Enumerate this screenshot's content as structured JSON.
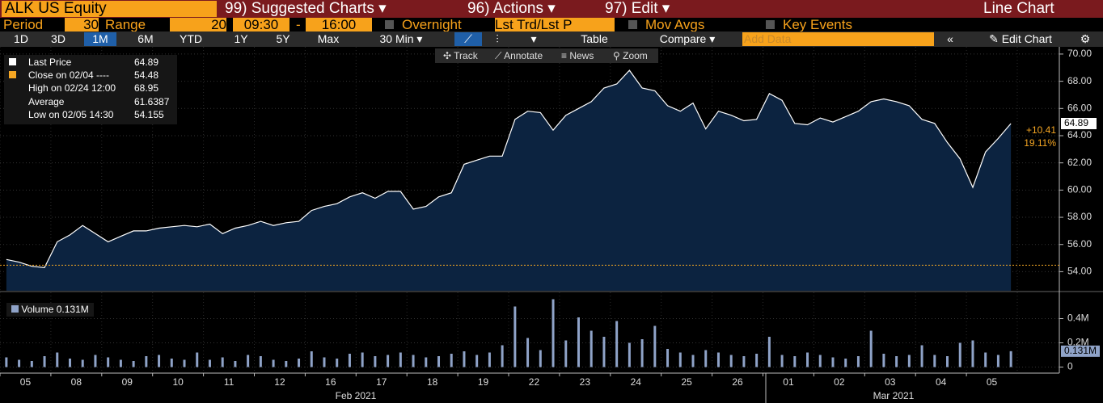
{
  "header": {
    "security": "ALK US Equity",
    "menus": [
      "99) Suggested Charts",
      "96) Actions",
      "97) Edit"
    ],
    "view": "Line Chart"
  },
  "settings": {
    "period_label": "Period",
    "period": "30",
    "range_label": "Range",
    "range": "20",
    "start": "09:30",
    "dash": "-",
    "end": "16:00",
    "overnight": "Overnight",
    "field": "Lst Trd/Lst P",
    "mov_avgs": "Mov Avgs",
    "key_events": "Key Events"
  },
  "toolbar": {
    "periods": [
      "1D",
      "3D",
      "1M",
      "6M",
      "YTD",
      "1Y",
      "5Y",
      "Max"
    ],
    "selected_period": "1M",
    "interval": "30 Min",
    "table": "Table",
    "compare": "Compare",
    "add_data": "Add Data",
    "edit_chart": "Edit Chart"
  },
  "chart_tools": [
    "Track",
    "Annotate",
    "News",
    "Zoom"
  ],
  "months": [
    "Feb 2021",
    "Mar 2021"
  ],
  "chart_data": [
    {
      "type": "area",
      "categories": [
        null,
        "05",
        null,
        null,
        null,
        "08",
        null,
        null,
        null,
        "09",
        null,
        null,
        null,
        "10",
        null,
        null,
        null,
        "11",
        null,
        null,
        null,
        "12",
        null,
        null,
        null,
        "16",
        null,
        null,
        null,
        "17",
        null,
        null,
        null,
        "18",
        null,
        null,
        null,
        "19",
        null,
        null,
        null,
        "22",
        null,
        null,
        null,
        "23",
        null,
        null,
        null,
        "24",
        null,
        null,
        null,
        "25",
        null,
        null,
        null,
        "26",
        null,
        null,
        null,
        "01",
        null,
        null,
        null,
        "02",
        null,
        null,
        null,
        "03",
        null,
        null,
        null,
        "04",
        null,
        null,
        null,
        "05",
        null,
        null
      ],
      "series": [
        {
          "name": "Last Price",
          "color": "#ffffff",
          "values": [
            54.9,
            54.7,
            54.4,
            54.3,
            56.2,
            56.7,
            57.4,
            56.8,
            56.2,
            56.6,
            57.0,
            57.0,
            57.2,
            57.3,
            57.4,
            57.3,
            57.5,
            56.8,
            57.2,
            57.4,
            57.7,
            57.4,
            57.6,
            57.7,
            58.5,
            58.8,
            59.0,
            59.5,
            59.8,
            59.4,
            59.9,
            59.9,
            58.6,
            58.8,
            59.5,
            59.8,
            61.9,
            62.2,
            62.5,
            62.5,
            65.2,
            65.8,
            65.7,
            64.4,
            65.5,
            66.0,
            66.5,
            67.5,
            67.8,
            68.8,
            67.5,
            67.3,
            66.2,
            65.8,
            66.4,
            64.5,
            65.8,
            65.5,
            65.1,
            65.2,
            67.1,
            66.6,
            64.9,
            64.8,
            65.3,
            65.0,
            65.4,
            65.8,
            66.5,
            66.7,
            66.5,
            66.2,
            65.2,
            64.9,
            63.5,
            62.3,
            60.2,
            62.8,
            63.8,
            64.89
          ]
        }
      ],
      "reference": {
        "name": "Close on 02/04 ----",
        "value": 54.48,
        "color": "#f5a623"
      },
      "stats": [
        {
          "label": "High on 02/24 12:00",
          "value": 68.95
        },
        {
          "label": "Average",
          "value": 61.6387
        },
        {
          "label": "Low on 02/05 14:30",
          "value": 54.155
        }
      ],
      "change": {
        "value": 10.41,
        "label": "+10.41"
      },
      "change_pct": {
        "value": 19.11,
        "label": "19.11%"
      },
      "ylim": [
        52.6,
        70.53
      ],
      "yticks": [
        {
          "value": 54,
          "label": "54.00"
        },
        {
          "value": 56,
          "label": "56.00"
        },
        {
          "value": 58,
          "label": "58.00"
        },
        {
          "value": 60,
          "label": "60.00"
        },
        {
          "value": 62,
          "label": "62.00"
        },
        {
          "value": 64,
          "label": "64.00"
        },
        {
          "value": 66,
          "label": "66.00"
        },
        {
          "value": 68,
          "label": "68.00"
        },
        {
          "value": 70,
          "label": "70.00"
        }
      ],
      "grid": true
    },
    {
      "type": "bar",
      "series": [
        {
          "name": "Volume",
          "color": "#8fa3c8",
          "values": [
            0.08,
            0.06,
            0.05,
            0.09,
            0.12,
            0.07,
            0.06,
            0.1,
            0.08,
            0.06,
            0.05,
            0.09,
            0.1,
            0.07,
            0.06,
            0.12,
            0.06,
            0.08,
            0.05,
            0.1,
            0.09,
            0.06,
            0.05,
            0.07,
            0.13,
            0.08,
            0.07,
            0.11,
            0.12,
            0.09,
            0.1,
            0.12,
            0.1,
            0.08,
            0.09,
            0.11,
            0.13,
            0.1,
            0.12,
            0.18,
            0.5,
            0.24,
            0.14,
            0.56,
            0.22,
            0.41,
            0.3,
            0.25,
            0.38,
            0.2,
            0.23,
            0.34,
            0.15,
            0.12,
            0.1,
            0.14,
            0.12,
            0.1,
            0.09,
            0.11,
            0.25,
            0.1,
            0.09,
            0.12,
            0.1,
            0.08,
            0.07,
            0.09,
            0.3,
            0.11,
            0.09,
            0.1,
            0.18,
            0.1,
            0.09,
            0.2,
            0.22,
            0.12,
            0.1,
            0.131
          ]
        }
      ],
      "last_label": {
        "value": 0.131,
        "label": "0.131M"
      },
      "ylim": [
        -0.05,
        0.6
      ],
      "yticks": [
        0,
        {
          "value": 0.2,
          "label": "0.2M"
        },
        {
          "value": 0.4,
          "label": "0.4M"
        }
      ],
      "grid": true
    }
  ]
}
